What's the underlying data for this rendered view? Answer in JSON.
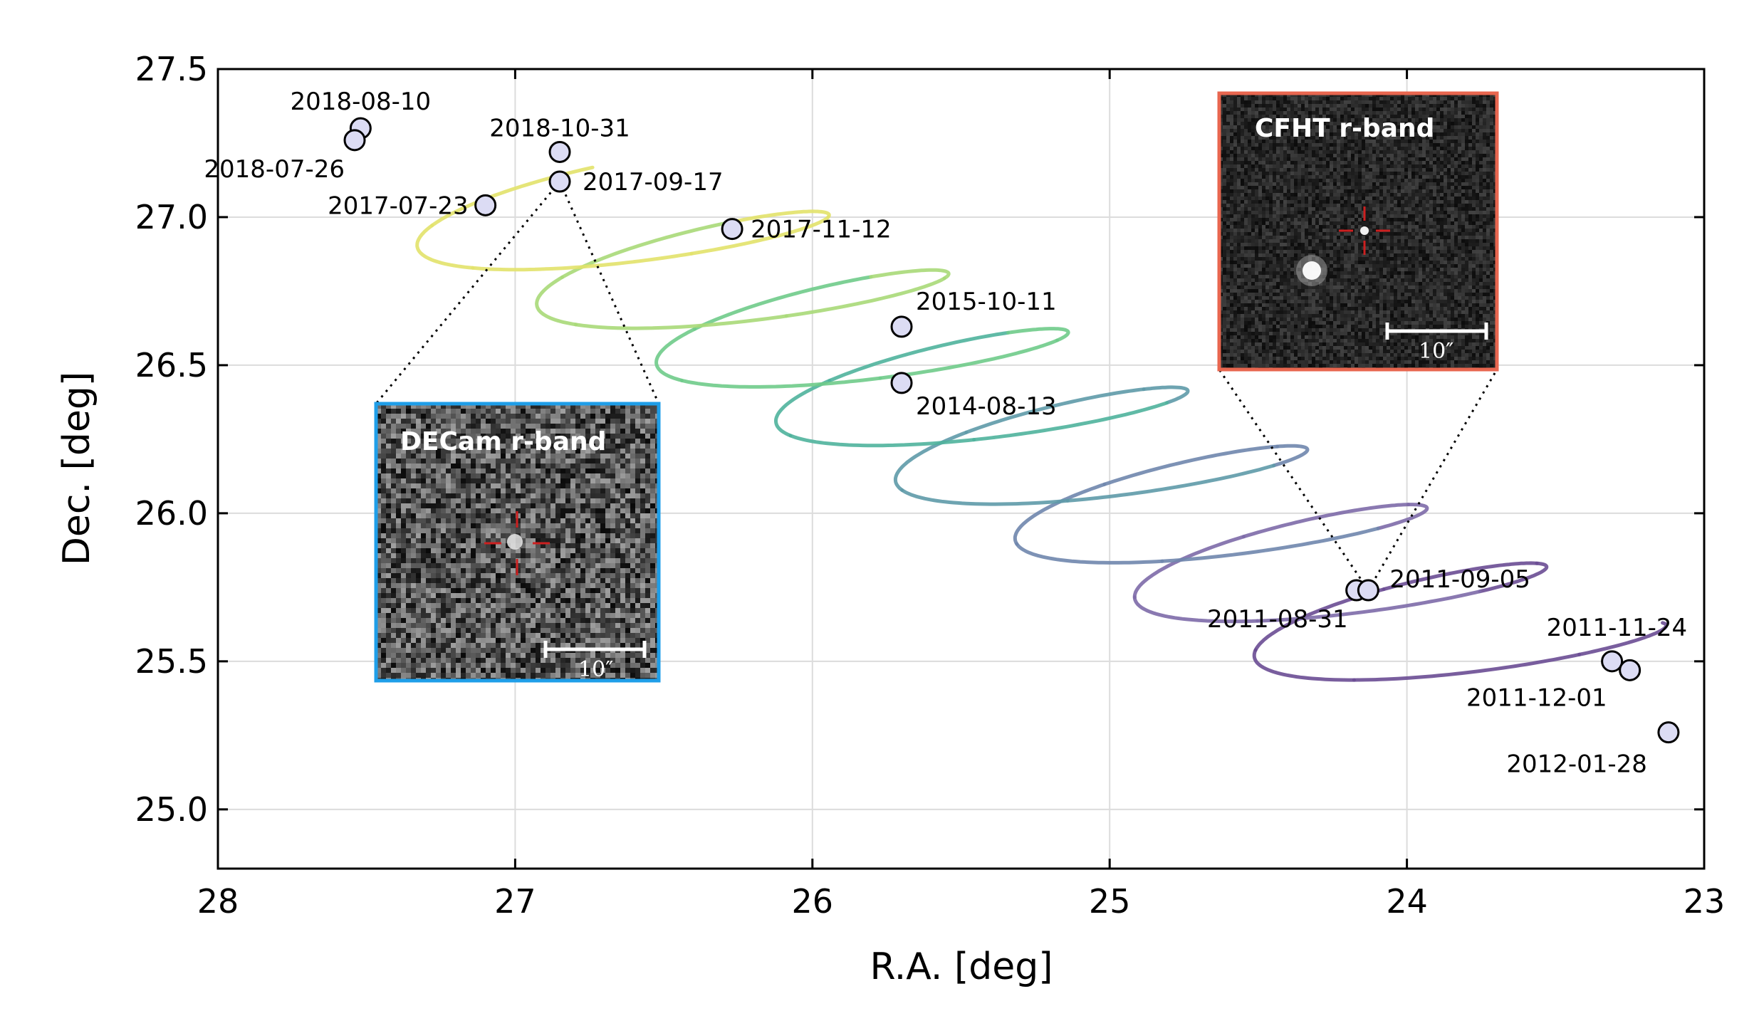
{
  "chart_data": {
    "type": "scatter",
    "xlabel": "R.A. [deg]",
    "ylabel": "Dec. [deg]",
    "xlim": [
      28,
      23
    ],
    "ylim": [
      24.8,
      27.5
    ],
    "x_axis_inverted": true,
    "grid": true,
    "x_ticks": [
      28,
      27,
      26,
      25,
      24,
      23
    ],
    "x_tick_labels": [
      "28",
      "27",
      "26",
      "25",
      "24",
      "23"
    ],
    "y_ticks": [
      25.0,
      25.5,
      26.0,
      26.5,
      27.0,
      27.5
    ],
    "y_tick_labels": [
      "25.0",
      "25.5",
      "26.0",
      "26.5",
      "27.0",
      "27.5"
    ],
    "observations": [
      {
        "date": "2018-08-10",
        "ra": 27.52,
        "dec": 27.3,
        "label_pos": "above"
      },
      {
        "date": "2018-07-26",
        "ra": 27.54,
        "dec": 27.26,
        "label_pos": "below-left"
      },
      {
        "date": "2018-10-31",
        "ra": 26.85,
        "dec": 27.22,
        "label_pos": "above"
      },
      {
        "date": "2017-09-17",
        "ra": 26.85,
        "dec": 27.12,
        "label_pos": "right"
      },
      {
        "date": "2017-07-23",
        "ra": 27.1,
        "dec": 27.04,
        "label_pos": "left"
      },
      {
        "date": "2017-11-12",
        "ra": 26.27,
        "dec": 26.96,
        "label_pos": "right"
      },
      {
        "date": "2015-10-11",
        "ra": 25.7,
        "dec": 26.63,
        "label_pos": "above-right"
      },
      {
        "date": "2014-08-13",
        "ra": 25.7,
        "dec": 26.44,
        "label_pos": "below-right"
      },
      {
        "date": "2011-08-31",
        "ra": 24.17,
        "dec": 25.74,
        "label_pos": "below-left"
      },
      {
        "date": "2011-09-05",
        "ra": 24.13,
        "dec": 25.74,
        "label_pos": "right"
      },
      {
        "date": "2011-11-24",
        "ra": 23.31,
        "dec": 25.5,
        "label_pos": "above-right"
      },
      {
        "date": "2011-12-01",
        "ra": 23.25,
        "dec": 25.47,
        "label_pos": "below-left"
      },
      {
        "date": "2012-01-28",
        "ra": 23.12,
        "dec": 25.26,
        "label_pos": "below"
      }
    ],
    "track": {
      "description": "parallax loops of apparent motion",
      "colormap": "viridis (purple = 2011, yellow = 2018)",
      "colors": [
        "#6a4c93",
        "#7d6aa8",
        "#6f86ad",
        "#5e9aa8",
        "#4fb39c",
        "#6fcb8a",
        "#a8d978",
        "#e2e26a"
      ]
    },
    "insets": [
      {
        "title": "DECam r-band",
        "border_color": "#1f9ee8",
        "scale_label": "10″",
        "points_to": "2017-09-17"
      },
      {
        "title": "CFHT r-band",
        "border_color": "#e8664f",
        "scale_label": "10″",
        "points_to": "2011-09-05"
      }
    ],
    "marker_fill": "#dcdcf4",
    "marker_edge": "#000000"
  }
}
